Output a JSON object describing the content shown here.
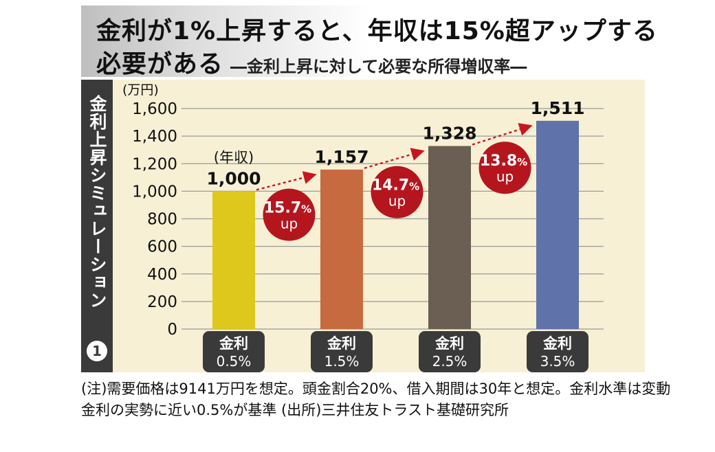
{
  "title": {
    "main": "金利が1%上昇すると、年収は15%超アップする",
    "line2": "必要がある",
    "sub": "―金利上昇に対して必要な所得増収率―"
  },
  "side_label": "金利上昇シミュレーション",
  "side_number": "1",
  "note": "(注)需要価格は9141万円を想定。頭金割合20%、借入期間は30年と想定。金利水準は変動金利の実勢に近い0.5%が基準 (出所)三井住友トラスト基礎研究所",
  "chart_data": {
    "type": "bar",
    "unit_label": "(万円)",
    "categories": [
      {
        "line1": "金利",
        "line2": "0.5%"
      },
      {
        "line1": "金利",
        "line2": "1.5%"
      },
      {
        "line1": "金利",
        "line2": "2.5%"
      },
      {
        "line1": "金利",
        "line2": "3.5%"
      }
    ],
    "values": [
      1000,
      1157,
      1328,
      1511
    ],
    "value_labels": [
      "1,000",
      "1,157",
      "1,328",
      "1,511"
    ],
    "first_bar_caption": "(年収)",
    "colors": [
      "#dfc81c",
      "#c86a3f",
      "#6b5e52",
      "#5f72a9"
    ],
    "ylim": [
      0,
      1600
    ],
    "yticks": [
      0,
      200,
      400,
      600,
      800,
      1000,
      1200,
      1400,
      1600
    ],
    "ytick_labels": [
      "0",
      "200",
      "400",
      "600",
      "800",
      "1,000",
      "1,200",
      "1,400",
      "1,600"
    ],
    "grid": true,
    "increases": [
      {
        "value": "15.7",
        "unit": "%",
        "text": "up"
      },
      {
        "value": "14.7",
        "unit": "%",
        "text": "up"
      },
      {
        "value": "13.8",
        "unit": "%",
        "text": "up"
      }
    ],
    "badge_color": "#b5161e",
    "arrow_color": "#c8161e"
  }
}
